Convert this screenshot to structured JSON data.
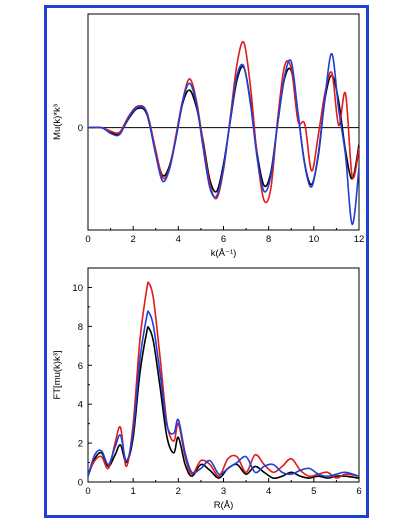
{
  "colors": {
    "frame": "#1f3fd8",
    "black": "#000000",
    "red": "#e11a1a",
    "blue": "#1f3fd8"
  },
  "chart_data": [
    {
      "type": "line",
      "xlabel": "k(Å⁻¹)",
      "ylabel": "Mu(k)*k³",
      "xlim": [
        0,
        12
      ],
      "ylim": [
        -9,
        10
      ],
      "x_ticks": [
        "0",
        "2",
        "4",
        "6",
        "8",
        "10",
        "12"
      ],
      "y_ticks": [
        "0"
      ],
      "series": [
        {
          "color": "black",
          "x": [
            0,
            0.6,
            1.0,
            1.4,
            1.8,
            2.2,
            2.6,
            3.0,
            3.3,
            3.6,
            3.9,
            4.2,
            4.5,
            4.8,
            5.1,
            5.4,
            5.7,
            6.0,
            6.3,
            6.6,
            6.9,
            7.2,
            7.5,
            7.8,
            8.1,
            8.4,
            8.7,
            9.0,
            9.3,
            9.6,
            9.9,
            10.2,
            10.5,
            10.8,
            11.1,
            11.4,
            11.7,
            12.0
          ],
          "y": [
            0,
            0,
            -0.4,
            -0.5,
            0.8,
            1.7,
            1.2,
            -2.2,
            -4.2,
            -3.4,
            -0.8,
            2.2,
            3.3,
            1.8,
            -1.2,
            -4.6,
            -5.6,
            -3.2,
            0.6,
            4.2,
            5.3,
            2.2,
            -2.4,
            -5.1,
            -3.9,
            0.4,
            4.3,
            5.0,
            1.2,
            -3.2,
            -5.0,
            -2.4,
            2.6,
            4.6,
            2.3,
            -2.0,
            -4.5,
            -1.5
          ]
        },
        {
          "color": "red",
          "x": [
            0,
            0.6,
            1.0,
            1.4,
            1.8,
            2.2,
            2.6,
            3.0,
            3.3,
            3.6,
            3.9,
            4.2,
            4.5,
            4.8,
            5.1,
            5.4,
            5.7,
            6.0,
            6.3,
            6.6,
            6.9,
            7.2,
            7.5,
            7.8,
            8.1,
            8.4,
            8.7,
            9.0,
            9.3,
            9.6,
            9.9,
            10.2,
            10.5,
            10.8,
            11.1,
            11.4,
            11.7,
            12.0
          ],
          "y": [
            0,
            0,
            -0.3,
            -0.4,
            1.0,
            1.9,
            1.4,
            -2.0,
            -4.4,
            -3.6,
            -0.6,
            2.5,
            4.3,
            2.4,
            -1.4,
            -5.0,
            -6.2,
            -3.7,
            0.9,
            5.6,
            7.5,
            3.5,
            -2.7,
            -6.4,
            -5.3,
            0.8,
            5.4,
            5.2,
            0.6,
            0.3,
            -3.8,
            -0.6,
            3.1,
            4.8,
            0.2,
            3.0,
            -4.3,
            -1.8
          ]
        },
        {
          "color": "blue",
          "x": [
            0,
            0.6,
            1.0,
            1.4,
            1.8,
            2.2,
            2.6,
            3.0,
            3.3,
            3.6,
            3.9,
            4.2,
            4.5,
            4.8,
            5.1,
            5.4,
            5.7,
            6.0,
            6.3,
            6.6,
            6.9,
            7.2,
            7.5,
            7.8,
            8.1,
            8.4,
            8.7,
            9.0,
            9.3,
            9.6,
            9.9,
            10.2,
            10.5,
            10.8,
            11.1,
            11.4,
            11.7,
            12.0
          ],
          "y": [
            0,
            0,
            -0.5,
            -0.6,
            0.9,
            1.8,
            1.3,
            -2.4,
            -4.7,
            -3.7,
            -0.9,
            2.4,
            3.9,
            2.1,
            -1.8,
            -5.3,
            -6.0,
            -3.5,
            0.7,
            4.6,
            5.4,
            2.0,
            -2.8,
            -5.6,
            -4.2,
            0.4,
            4.5,
            5.8,
            1.3,
            -3.3,
            -5.2,
            -2.2,
            2.8,
            6.5,
            1.6,
            -2.4,
            -8.5,
            -3.5
          ]
        }
      ]
    },
    {
      "type": "line",
      "xlabel": "R(Å)",
      "ylabel": "FT[mu(k)k³]",
      "xlim": [
        0,
        6
      ],
      "ylim": [
        0,
        11
      ],
      "x_ticks": [
        "0",
        "1",
        "2",
        "3",
        "4",
        "5",
        "6"
      ],
      "y_ticks": [
        "0",
        "2",
        "4",
        "6",
        "8",
        "10"
      ],
      "series": [
        {
          "color": "black",
          "x": [
            0,
            0.15,
            0.3,
            0.45,
            0.6,
            0.72,
            0.85,
            1.0,
            1.15,
            1.3,
            1.35,
            1.45,
            1.6,
            1.75,
            1.9,
            2.0,
            2.15,
            2.3,
            2.5,
            2.7,
            2.9,
            3.1,
            3.3,
            3.5,
            3.7,
            3.9,
            4.1,
            4.3,
            4.5,
            4.7,
            4.9,
            5.1,
            5.3,
            5.5,
            5.7,
            6.0
          ],
          "y": [
            0.3,
            1.2,
            1.5,
            0.8,
            1.4,
            1.9,
            1.0,
            2.3,
            5.6,
            7.7,
            7.9,
            7.2,
            4.8,
            2.3,
            1.5,
            2.3,
            0.9,
            0.3,
            0.9,
            0.6,
            0.2,
            0.7,
            0.9,
            0.4,
            0.8,
            0.5,
            0.2,
            0.3,
            0.5,
            0.3,
            0.2,
            0.3,
            0.2,
            0.3,
            0.3,
            0.2
          ]
        },
        {
          "color": "red",
          "x": [
            0,
            0.15,
            0.3,
            0.45,
            0.6,
            0.72,
            0.85,
            1.0,
            1.15,
            1.3,
            1.35,
            1.45,
            1.6,
            1.75,
            1.9,
            2.0,
            2.15,
            2.3,
            2.5,
            2.7,
            2.9,
            3.1,
            3.3,
            3.5,
            3.7,
            3.9,
            4.1,
            4.3,
            4.5,
            4.7,
            4.9,
            5.1,
            5.3,
            5.5,
            5.7,
            6.0
          ],
          "y": [
            0.4,
            1.1,
            1.3,
            0.7,
            2.0,
            2.8,
            0.8,
            3.0,
            7.3,
            9.9,
            10.2,
            9.4,
            6.3,
            3.0,
            2.1,
            3.0,
            1.3,
            0.4,
            1.1,
            0.9,
            0.3,
            1.2,
            1.3,
            0.5,
            1.4,
            0.9,
            0.5,
            0.8,
            1.2,
            0.6,
            0.3,
            0.4,
            0.5,
            0.2,
            0.4,
            0.3
          ]
        },
        {
          "color": "blue",
          "x": [
            0,
            0.15,
            0.3,
            0.45,
            0.6,
            0.72,
            0.85,
            1.0,
            1.15,
            1.3,
            1.35,
            1.45,
            1.6,
            1.75,
            1.9,
            2.0,
            2.15,
            2.3,
            2.5,
            2.7,
            2.9,
            3.1,
            3.3,
            3.5,
            3.7,
            3.9,
            4.1,
            4.3,
            4.5,
            4.7,
            4.9,
            5.1,
            5.3,
            5.5,
            5.7,
            6.0
          ],
          "y": [
            0.3,
            1.4,
            1.6,
            0.9,
            1.8,
            2.4,
            1.1,
            2.6,
            6.3,
            8.5,
            8.7,
            8.0,
            5.5,
            2.9,
            2.5,
            3.2,
            1.5,
            0.5,
            0.7,
            1.1,
            0.4,
            0.7,
            1.0,
            1.3,
            0.5,
            0.8,
            0.9,
            0.5,
            0.4,
            0.6,
            0.7,
            0.4,
            0.3,
            0.4,
            0.5,
            0.3
          ]
        }
      ]
    }
  ]
}
